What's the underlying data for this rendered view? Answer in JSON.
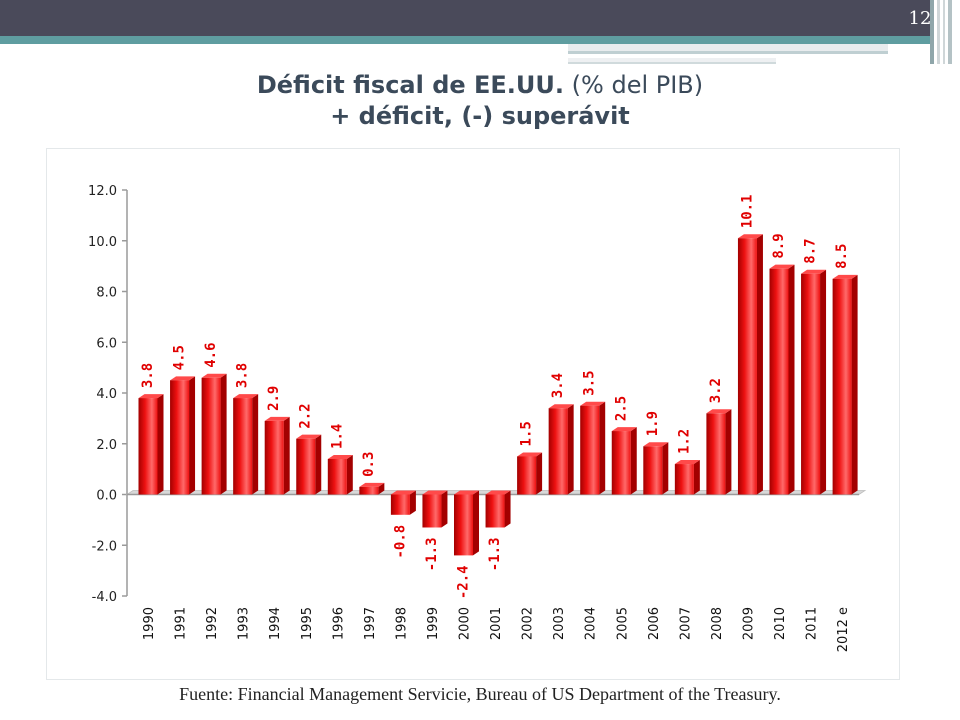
{
  "page": {
    "number": "12",
    "title_bold": "Déficit fiscal de EE.UU.",
    "title_light": "(% del PIB)",
    "subtitle": "+ déficit, (-) superávit",
    "source": "Fuente:  Financial Management Servicie, Bureau of US Department of the Treasury."
  },
  "colors": {
    "bar": "#ee1111",
    "bar_dark": "#a30000",
    "bar_light": "#ff6a6a",
    "label": "#e00000",
    "axis": "#9a9a9a"
  },
  "chart_data": {
    "type": "bar",
    "title": "Déficit fiscal de EE.UU. (% del PIB)",
    "xlabel": "",
    "ylabel": "",
    "ylim": [
      -4.0,
      12.0
    ],
    "yticks": [
      "12.0",
      "10.0",
      "8.0",
      "6.0",
      "4.0",
      "2.0",
      "0.0",
      "-2.0",
      "-4.0"
    ],
    "ytick_values": [
      12,
      10,
      8,
      6,
      4,
      2,
      0,
      -2,
      -4
    ],
    "categories": [
      "1990",
      "1991",
      "1992",
      "1993",
      "1994",
      "1995",
      "1996",
      "1997",
      "1998",
      "1999",
      "2000",
      "2001",
      "2002",
      "2003",
      "2004",
      "2005",
      "2006",
      "2007",
      "2008",
      "2009",
      "2010",
      "2011",
      "2012 e"
    ],
    "values": [
      3.8,
      4.5,
      4.6,
      3.8,
      2.9,
      2.2,
      1.4,
      0.3,
      -0.8,
      -1.3,
      -2.4,
      -1.3,
      1.5,
      3.4,
      3.5,
      2.5,
      1.9,
      1.2,
      3.2,
      10.1,
      8.9,
      8.7,
      8.5
    ],
    "value_labels": [
      "3.8",
      "4.5",
      "4.6",
      "3.8",
      "2.9",
      "2.2",
      "1.4",
      "0.3",
      "-0.8",
      "-1.3",
      "-2.4",
      "-1.3",
      "1.5",
      "3.4",
      "3.5",
      "2.5",
      "1.9",
      "1.2",
      "3.2",
      "10.1",
      "8.9",
      "8.7",
      "8.5"
    ],
    "grid": false,
    "legend": "none"
  }
}
